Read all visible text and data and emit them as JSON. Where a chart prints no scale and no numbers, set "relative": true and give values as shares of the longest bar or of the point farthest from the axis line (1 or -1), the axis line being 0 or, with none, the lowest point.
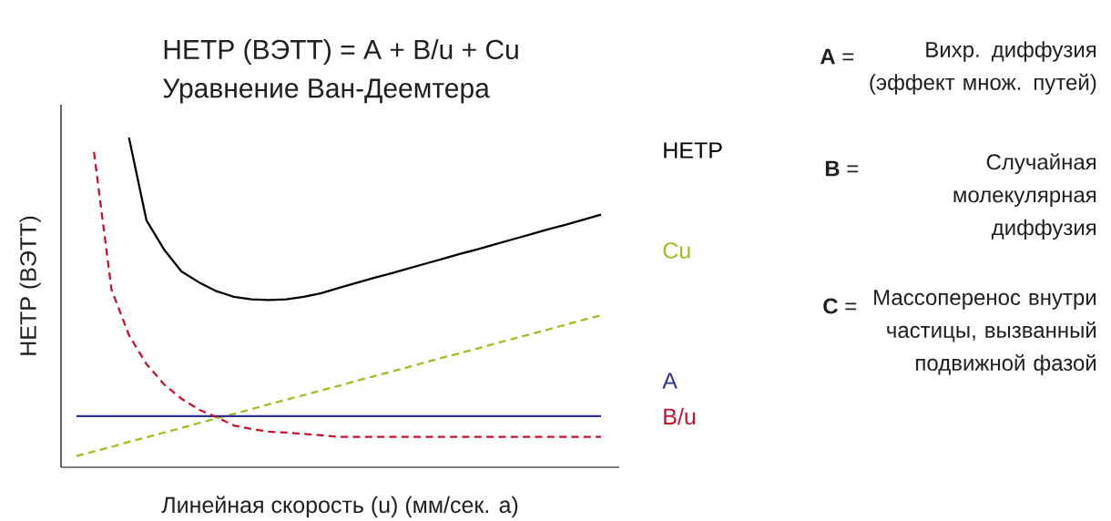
{
  "chart_data": {
    "type": "line",
    "title": "HETP (ВЭТТ) = A + B/u + Cu",
    "subtitle": "Уравнение Ван-Деемтера",
    "xlabel": "Линейная скорость (u) (мм/сек. a)",
    "ylabel": "HETP (ВЭТТ)",
    "relative": true,
    "legend": false,
    "categories": [
      null,
      null,
      null,
      null,
      null,
      null,
      null,
      null,
      null,
      null,
      null,
      null,
      null,
      null,
      null,
      null,
      null,
      null,
      null,
      null,
      null,
      null,
      null,
      null,
      null,
      null,
      null,
      null,
      null,
      null,
      null
    ],
    "series": [
      {
        "name": "HETP",
        "color": "#000000",
        "line_style": "solid",
        "values": [
          null,
          null,
          null,
          1.0,
          0.749,
          0.661,
          0.594,
          0.561,
          0.534,
          0.517,
          0.509,
          0.507,
          0.509,
          0.517,
          0.528,
          0.544,
          0.559,
          0.574,
          0.588,
          0.603,
          0.618,
          0.633,
          0.648,
          0.662,
          0.677,
          0.692,
          0.707,
          0.722,
          0.736,
          0.751,
          0.766
        ]
      },
      {
        "name": "Cu",
        "color": "#99c01c",
        "line_style": "dashed",
        "values": [
          0.034,
          0.048,
          0.062,
          0.077,
          0.091,
          0.105,
          0.119,
          0.134,
          0.148,
          0.162,
          0.176,
          0.191,
          0.205,
          0.219,
          0.233,
          0.247,
          0.262,
          0.276,
          0.29,
          0.304,
          0.319,
          0.333,
          0.347,
          0.361,
          0.376,
          0.39,
          0.404,
          0.418,
          0.433,
          0.447,
          0.461
        ]
      },
      {
        "name": "A",
        "color": "#2e3190",
        "line_style": "solid",
        "values": [
          0.155,
          0.155,
          0.155,
          0.155,
          0.155,
          0.155,
          0.155,
          0.155,
          0.155,
          0.155,
          0.155,
          0.155,
          0.155,
          0.155,
          0.155,
          0.155,
          0.155,
          0.155,
          0.155,
          0.155,
          0.155,
          0.155,
          0.155,
          0.155,
          0.155,
          0.155,
          0.155,
          0.155,
          0.155,
          0.155,
          0.155
        ]
      },
      {
        "name": "B/u",
        "color": "#c8102e",
        "line_style": "dashed",
        "values": [
          null,
          0.956,
          0.539,
          0.401,
          0.313,
          0.252,
          0.208,
          0.175,
          0.152,
          0.127,
          0.116,
          0.108,
          0.105,
          0.101,
          0.097,
          0.092,
          0.092,
          0.092,
          0.092,
          0.092,
          0.092,
          0.092,
          0.092,
          0.092,
          0.092,
          0.092,
          0.092,
          0.092,
          0.092,
          0.092,
          0.092
        ]
      }
    ],
    "annotations": [
      "**A** =",
      "Вихр. диффузия (эффект множ. путей)",
      "**B** =",
      "Случайная молекулярная диффузия",
      "**C** =",
      "Массоперенос внутри частицы, вызванный подвижной фазой"
    ]
  }
}
